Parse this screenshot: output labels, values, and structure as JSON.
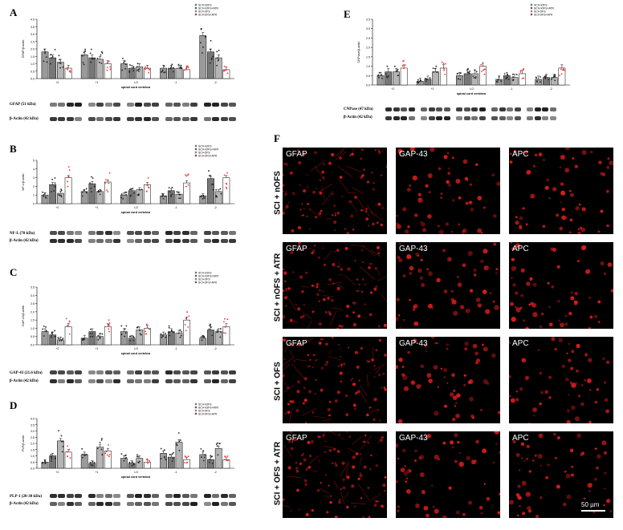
{
  "figure": {
    "panel_labels": {
      "A": "A",
      "B": "B",
      "C": "C",
      "D": "D",
      "E": "E",
      "F": "F"
    },
    "x_axis_title": "spinal cord vertebra",
    "legend": [
      "SCI+nOFS",
      "SCI+nOFS+ATR",
      "SCI+OFS",
      "SCI+OFS+ATR"
    ],
    "colors": {
      "s1": "#9a9a9a",
      "s2": "#777777",
      "s3": "#b5b5b5",
      "s4": "#ffffff",
      "points4": "#ff3333",
      "accent": "#e02020"
    }
  },
  "blots": {
    "A": {
      "top": "GFAP (51 kDa)",
      "bottom": "β-Actin (42 kDa)"
    },
    "B": {
      "top": "NF-L (70 kDa)",
      "bottom": "β-Actin (42 kDa)"
    },
    "C": {
      "top": "GAP-43 (21.6 kDa)",
      "bottom": "β-Actin (42 kDa)"
    },
    "D": {
      "top": "PLP-1 (20-30 kDa)",
      "bottom": "β-Actin (42 kDa)"
    },
    "E": {
      "top": "CNPase (47 kDa)",
      "bottom": "β-Actin (42 kDa)"
    }
  },
  "chart_data": [
    {
      "panel": "A",
      "type": "bar",
      "ylabel": "GFAP/β-actin",
      "categories": [
        "+2",
        "+1",
        "LG",
        "-1",
        "-2"
      ],
      "ylim": [
        0,
        4
      ],
      "yticks": [
        "0.0",
        "0.5",
        "1.0",
        "1.5",
        "2.0",
        "2.5",
        "3.0",
        "3.5",
        "4.0"
      ],
      "series": [
        {
          "name": "SCI+nOFS",
          "values": [
            1.8,
            1.6,
            1.0,
            0.7,
            2.9
          ]
        },
        {
          "name": "SCI+nOFS+ATR",
          "values": [
            1.4,
            1.4,
            0.7,
            0.7,
            1.8
          ]
        },
        {
          "name": "SCI+OFS",
          "values": [
            1.1,
            1.3,
            0.8,
            0.7,
            1.4
          ]
        },
        {
          "name": "SCI+OFS+ATR",
          "values": [
            0.7,
            1.0,
            0.7,
            0.6,
            0.6
          ]
        }
      ]
    },
    {
      "panel": "B",
      "type": "bar",
      "ylabel": "NF-L/β-actin",
      "categories": [
        "+2",
        "+1",
        "LG",
        "-1",
        "-2"
      ],
      "ylim": [
        0,
        5
      ],
      "yticks": [
        "0",
        "1",
        "2",
        "3",
        "4",
        "5"
      ],
      "series": [
        {
          "name": "SCI+nOFS",
          "values": [
            1.0,
            1.4,
            1.0,
            0.9,
            0.9
          ]
        },
        {
          "name": "SCI+nOFS+ATR",
          "values": [
            2.2,
            2.3,
            1.5,
            1.5,
            2.9
          ]
        },
        {
          "name": "SCI+OFS",
          "values": [
            1.2,
            1.4,
            1.6,
            1.1,
            1.4
          ]
        },
        {
          "name": "SCI+OFS+ATR",
          "values": [
            3.0,
            2.5,
            2.2,
            2.4,
            3.0
          ]
        }
      ]
    },
    {
      "panel": "C",
      "type": "bar",
      "ylabel": "GAP-43/β-actin",
      "categories": [
        "+2",
        "+1",
        "LG",
        "-1",
        "-2"
      ],
      "ylim": [
        0,
        3.5
      ],
      "yticks": [
        "0.0",
        "0.5",
        "1.0",
        "1.5",
        "2.0",
        "2.5",
        "3.0",
        "3.5"
      ],
      "series": [
        {
          "name": "SCI+nOFS",
          "values": [
            0.8,
            0.4,
            0.8,
            0.6,
            0.4
          ]
        },
        {
          "name": "SCI+nOFS+ATR",
          "values": [
            0.6,
            0.8,
            0.4,
            0.8,
            0.9
          ]
        },
        {
          "name": "SCI+OFS",
          "values": [
            0.3,
            0.5,
            0.9,
            0.7,
            0.8
          ]
        },
        {
          "name": "SCI+OFS+ATR",
          "values": [
            1.1,
            1.1,
            1.0,
            1.5,
            1.1
          ]
        }
      ]
    },
    {
      "panel": "D",
      "type": "bar",
      "ylabel": "PLP/β-actin",
      "categories": [
        "+2",
        "+1",
        "LG",
        "-1",
        "-2"
      ],
      "ylim": [
        0,
        4
      ],
      "yticks": [
        "0.0",
        "0.5",
        "1.0",
        "1.5",
        "2.0",
        "2.5",
        "3.0",
        "3.5",
        "4.0"
      ],
      "series": [
        {
          "name": "SCI+nOFS",
          "values": [
            0.5,
            1.1,
            0.8,
            1.2,
            1.1
          ]
        },
        {
          "name": "SCI+nOFS+ATR",
          "values": [
            1.0,
            0.4,
            0.4,
            0.9,
            0.7
          ]
        },
        {
          "name": "SCI+OFS",
          "values": [
            2.2,
            1.7,
            0.8,
            2.1,
            1.6
          ]
        },
        {
          "name": "SCI+OFS+ATR",
          "values": [
            1.3,
            1.4,
            0.5,
            0.7,
            0.7
          ]
        }
      ]
    },
    {
      "panel": "E",
      "type": "bar",
      "ylabel": "CNPase/β-actin",
      "categories": [
        "+2",
        "+1",
        "LG",
        "-1",
        "-2"
      ],
      "ylim": [
        0,
        3.5
      ],
      "yticks": [
        "0.0",
        "0.5",
        "1.0",
        "1.5",
        "2.0",
        "2.5",
        "3.0",
        "3.5"
      ],
      "series": [
        {
          "name": "SCI+nOFS",
          "values": [
            0.5,
            0.2,
            0.5,
            0.3,
            0.3
          ]
        },
        {
          "name": "SCI+nOFS+ATR",
          "values": [
            0.7,
            0.3,
            0.6,
            0.5,
            0.4
          ]
        },
        {
          "name": "SCI+OFS",
          "values": [
            0.7,
            0.7,
            0.6,
            0.4,
            0.4
          ]
        },
        {
          "name": "SCI+OFS+ATR",
          "values": [
            0.9,
            0.9,
            1.0,
            0.6,
            0.9
          ]
        }
      ]
    }
  ],
  "micrographs": {
    "rows": [
      "SCI + nOFS",
      "SCI + nOFS + ATR",
      "SCI + OFS",
      "SCI + OFS + ATR"
    ],
    "columns": [
      "GFAP",
      "GAP-43",
      "APC"
    ],
    "scale_bar": "50 µm"
  }
}
